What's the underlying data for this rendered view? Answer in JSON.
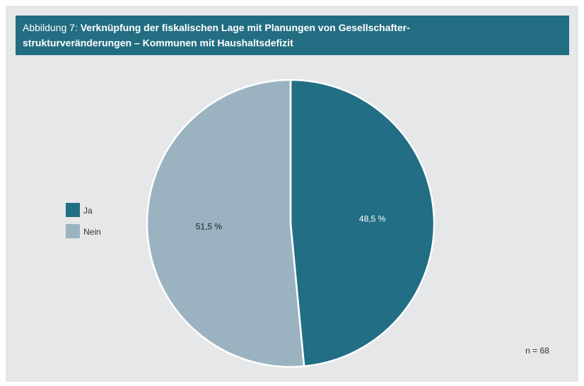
{
  "chart_data": {
    "type": "pie",
    "figure_label": "Abbildung 7:",
    "title": [
      "Verknüpfung der fiskalischen Lage mit Planungen von Gesellschafter-",
      "strukturveränderungen – Kommunen mit Haushaltsdefizit"
    ],
    "categories": [
      "Ja",
      "Nein"
    ],
    "values": [
      48.5,
      51.5
    ],
    "value_labels": [
      "48,5 %",
      "51,5 %"
    ],
    "colors": [
      "#226e84",
      "#9bb3c0"
    ],
    "legend": "left",
    "annotation": "n = 68"
  }
}
